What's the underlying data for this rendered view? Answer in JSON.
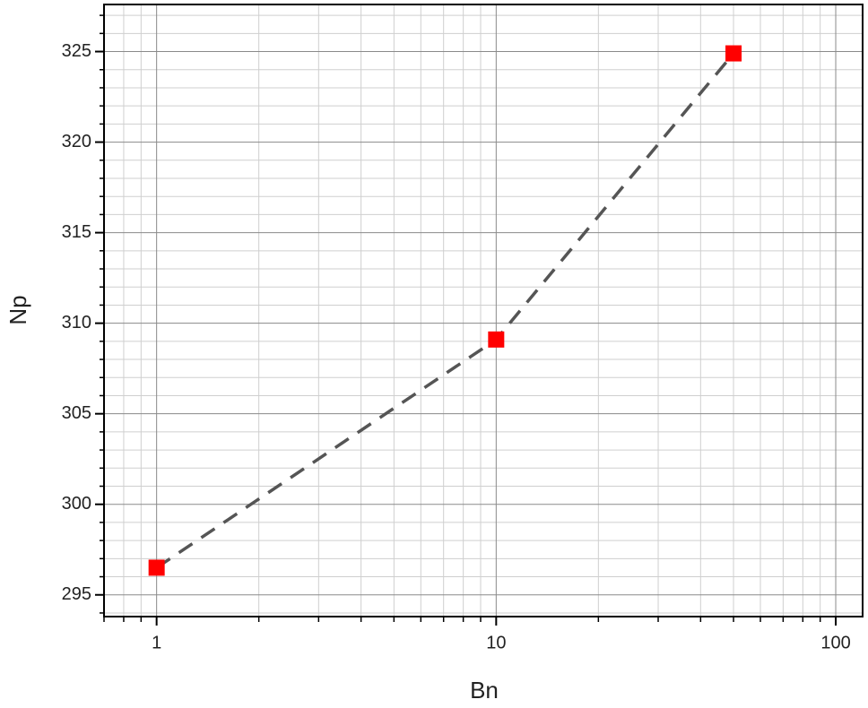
{
  "chart_data": {
    "type": "line",
    "x_label": "Bn",
    "y_label": "Np",
    "x": [
      1,
      10,
      50
    ],
    "values": [
      296.5,
      309.1,
      324.9
    ],
    "marker_color": "#ff0000",
    "line_color": "#555555",
    "line_style": "dashed",
    "xscale": "log",
    "xlim": [
      0.7,
      120
    ],
    "xticks": [
      1,
      10,
      100
    ],
    "xminorticks": [
      0.7,
      0.8,
      0.9,
      2,
      3,
      4,
      5,
      6,
      7,
      8,
      9,
      20,
      30,
      40,
      50,
      60,
      70,
      80,
      90
    ],
    "ylim": [
      293.8,
      327.6
    ],
    "yticks": [
      295,
      300,
      305,
      310,
      315,
      320,
      325
    ],
    "yminorticks": [
      294,
      296,
      297,
      298,
      299,
      301,
      302,
      303,
      304,
      306,
      307,
      308,
      309,
      311,
      312,
      313,
      314,
      316,
      317,
      318,
      319,
      321,
      322,
      323,
      324,
      326,
      327
    ],
    "grid": true
  }
}
